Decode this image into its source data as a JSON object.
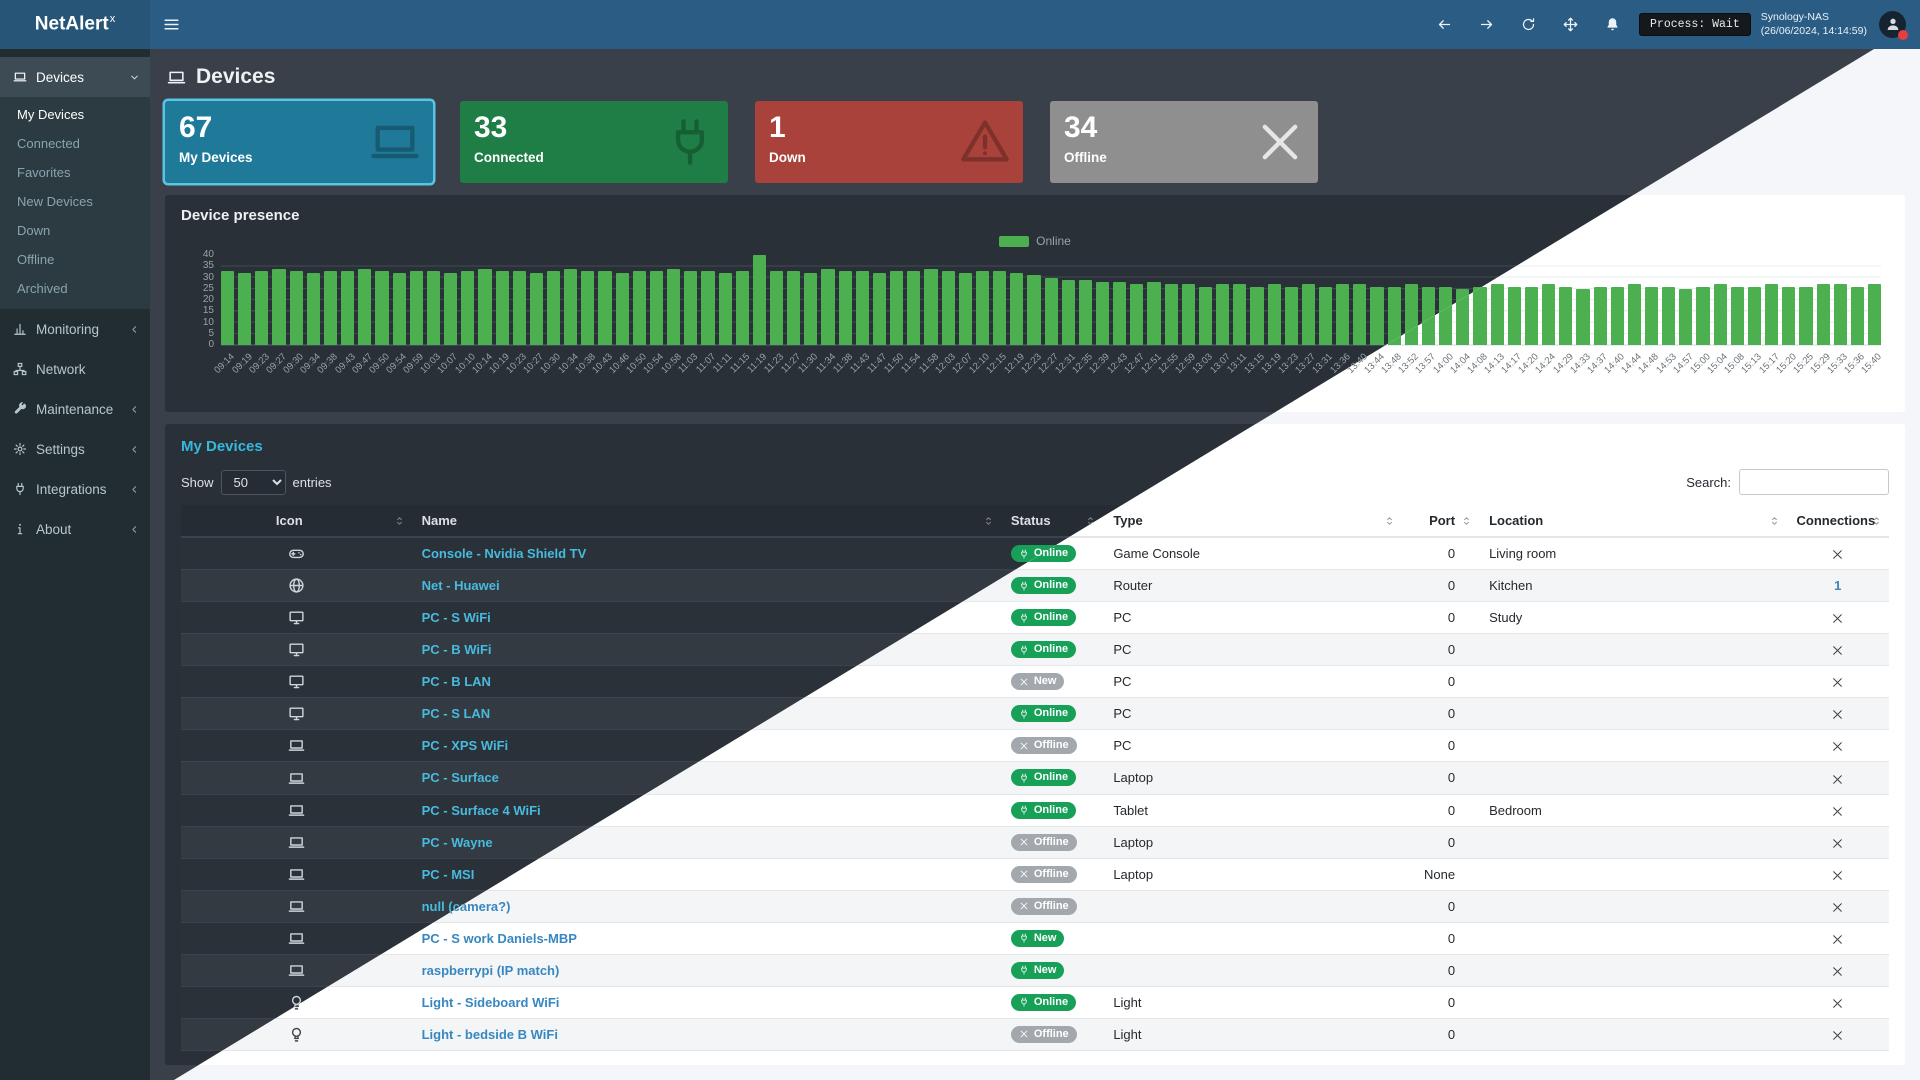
{
  "navbar": {
    "brand": "NetAlert",
    "brand_sup": "x",
    "process_label": "Process: Wait",
    "host": "Synology-NAS",
    "timestamp": "(26/06/2024, 14:14:59)"
  },
  "sidebar": {
    "sections": [
      {
        "label": "Devices",
        "icon": "laptop-icon",
        "chevron": "down",
        "active": true,
        "children": [
          "My Devices",
          "Connected",
          "Favorites",
          "New Devices",
          "Down",
          "Offline",
          "Archived"
        ]
      },
      {
        "label": "Monitoring",
        "icon": "chart-icon",
        "chevron": "left"
      },
      {
        "label": "Network",
        "icon": "network-icon",
        "chevron": ""
      },
      {
        "label": "Maintenance",
        "icon": "wrench-icon",
        "chevron": "left"
      },
      {
        "label": "Settings",
        "icon": "gear-icon",
        "chevron": "left"
      },
      {
        "label": "Integrations",
        "icon": "plug-icon",
        "chevron": "left"
      },
      {
        "label": "About",
        "icon": "info-icon",
        "chevron": "left"
      }
    ]
  },
  "page": {
    "title": "Devices"
  },
  "cards": [
    {
      "value": "67",
      "label": "My Devices",
      "icon": "laptop-icon",
      "color": "#1f7a99",
      "selected": true
    },
    {
      "value": "33",
      "label": "Connected",
      "icon": "plug-icon",
      "color": "#1e7e45"
    },
    {
      "value": "1",
      "label": "Down",
      "icon": "warning-icon",
      "color": "#a8423a"
    },
    {
      "value": "34",
      "label": "Offline",
      "icon": "x-icon",
      "color": "#8f8f8f",
      "icon_bright": true
    }
  ],
  "chart_data": {
    "type": "bar",
    "title": "Device presence",
    "legend_label": "Online",
    "legend_position": "top-center",
    "bar_color": "#4caf50",
    "grid": true,
    "ylim": [
      0,
      40
    ],
    "yticks": [
      0,
      5,
      10,
      15,
      20,
      25,
      30,
      35,
      40
    ],
    "x": [
      "09:14",
      "09:19",
      "09:23",
      "09:27",
      "09:30",
      "09:34",
      "09:38",
      "09:43",
      "09:47",
      "09:50",
      "09:54",
      "09:59",
      "10:03",
      "10:07",
      "10:10",
      "10:14",
      "10:19",
      "10:23",
      "10:27",
      "10:30",
      "10:34",
      "10:38",
      "10:43",
      "10:46",
      "10:50",
      "10:54",
      "10:58",
      "11:03",
      "11:07",
      "11:11",
      "11:15",
      "11:19",
      "11:23",
      "11:27",
      "11:30",
      "11:34",
      "11:38",
      "11:43",
      "11:47",
      "11:50",
      "11:54",
      "11:58",
      "12:03",
      "12:07",
      "12:10",
      "12:15",
      "12:19",
      "12:23",
      "12:27",
      "12:31",
      "12:35",
      "12:39",
      "12:43",
      "12:47",
      "12:51",
      "12:55",
      "12:59",
      "13:03",
      "13:07",
      "13:11",
      "13:15",
      "13:19",
      "13:23",
      "13:27",
      "13:31",
      "13:36",
      "13:40",
      "13:44",
      "13:48",
      "13:52",
      "13:57",
      "14:00",
      "14:04",
      "14:08",
      "14:13",
      "14:17",
      "14:20",
      "14:24",
      "14:29",
      "14:33",
      "14:37",
      "14:40",
      "14:44",
      "14:48",
      "14:53",
      "14:57",
      "15:00",
      "15:04",
      "15:08",
      "15:13",
      "15:17",
      "15:20",
      "15:25",
      "15:29",
      "15:33",
      "15:36",
      "15:40"
    ],
    "values": [
      33,
      32,
      33,
      34,
      33,
      32,
      33,
      33,
      34,
      33,
      32,
      33,
      33,
      32,
      33,
      34,
      33,
      33,
      32,
      33,
      34,
      33,
      33,
      32,
      33,
      33,
      34,
      33,
      33,
      32,
      33,
      40,
      33,
      33,
      32,
      34,
      33,
      33,
      32,
      33,
      33,
      34,
      33,
      32,
      33,
      33,
      32,
      31,
      30,
      29,
      29,
      28,
      28,
      27,
      28,
      27,
      27,
      26,
      27,
      27,
      26,
      27,
      26,
      27,
      26,
      27,
      27,
      26,
      26,
      27,
      26,
      26,
      25,
      26,
      27,
      26,
      26,
      27,
      26,
      25,
      26,
      26,
      27,
      26,
      26,
      25,
      26,
      27,
      26,
      26,
      27,
      26,
      26,
      27,
      27,
      26,
      27
    ]
  },
  "table": {
    "heading": "My Devices",
    "show_label": "Show",
    "page_size": "50",
    "entries_label": "entries",
    "search_label": "Search:",
    "search_value": "",
    "columns": [
      "Icon",
      "Name",
      "Status",
      "Type",
      "Port",
      "Location",
      "Connections"
    ],
    "rows": [
      {
        "icon": "gamepad-icon",
        "name": "Console - Nvidia Shield TV",
        "status": {
          "label": "Online",
          "kind": "online"
        },
        "type": "Game Console",
        "port": "0",
        "location": "Living room",
        "connections": "x"
      },
      {
        "icon": "globe-icon",
        "name": "Net - Huawei",
        "status": {
          "label": "Online",
          "kind": "online"
        },
        "type": "Router",
        "port": "0",
        "location": "Kitchen",
        "connections": "1"
      },
      {
        "icon": "desktop-icon",
        "name": "PC - S WiFi",
        "status": {
          "label": "Online",
          "kind": "online"
        },
        "type": "PC",
        "port": "0",
        "location": "Study",
        "connections": "x"
      },
      {
        "icon": "desktop-icon",
        "name": "PC - B WiFi",
        "status": {
          "label": "Online",
          "kind": "online"
        },
        "type": "PC",
        "port": "0",
        "location": "",
        "connections": "x"
      },
      {
        "icon": "desktop-icon",
        "name": "PC - B LAN",
        "status": {
          "label": "New",
          "kind": "new_muted"
        },
        "type": "PC",
        "port": "0",
        "location": "",
        "connections": "x"
      },
      {
        "icon": "desktop-icon",
        "name": "PC - S LAN",
        "status": {
          "label": "Online",
          "kind": "online"
        },
        "type": "PC",
        "port": "0",
        "location": "",
        "connections": "x"
      },
      {
        "icon": "laptop-icon",
        "name": "PC - XPS WiFi",
        "status": {
          "label": "Offline",
          "kind": "offline"
        },
        "type": "PC",
        "port": "0",
        "location": "",
        "connections": "x"
      },
      {
        "icon": "laptop-icon",
        "name": "PC - Surface",
        "status": {
          "label": "Online",
          "kind": "online"
        },
        "type": "Laptop",
        "port": "0",
        "location": "",
        "connections": "x"
      },
      {
        "icon": "laptop-icon",
        "name": "PC - Surface 4 WiFi",
        "status": {
          "label": "Online",
          "kind": "online"
        },
        "type": "Tablet",
        "port": "0",
        "location": "Bedroom",
        "connections": "x"
      },
      {
        "icon": "laptop-icon",
        "name": "PC - Wayne",
        "status": {
          "label": "Offline",
          "kind": "offline"
        },
        "type": "Laptop",
        "port": "0",
        "location": "",
        "connections": "x"
      },
      {
        "icon": "laptop-icon",
        "name": "PC - MSI",
        "status": {
          "label": "Offline",
          "kind": "offline"
        },
        "type": "Laptop",
        "port": "None",
        "location": "",
        "connections": "x"
      },
      {
        "icon": "laptop-icon",
        "name": "null (camera?)",
        "status": {
          "label": "Offline",
          "kind": "offline"
        },
        "type": "",
        "port": "0",
        "location": "",
        "connections": "x"
      },
      {
        "icon": "laptop-icon",
        "name": "PC - S work Daniels-MBP",
        "status": {
          "label": "New",
          "kind": "new"
        },
        "type": "",
        "port": "0",
        "location": "",
        "connections": "x"
      },
      {
        "icon": "laptop-icon",
        "name": "raspberrypi (IP match)",
        "status": {
          "label": "New",
          "kind": "new"
        },
        "type": "",
        "port": "0",
        "location": "",
        "connections": "x"
      },
      {
        "icon": "lightbulb-icon",
        "name": "Light - Sideboard WiFi",
        "status": {
          "label": "Online",
          "kind": "online"
        },
        "type": "Light",
        "port": "0",
        "location": "",
        "connections": "x"
      },
      {
        "icon": "lightbulb-icon",
        "name": "Light - bedside B WiFi",
        "status": {
          "label": "Offline",
          "kind": "offline"
        },
        "type": "Light",
        "port": "0",
        "location": "",
        "connections": "x"
      }
    ]
  },
  "colors": {
    "navbar_dark": "#2b5d84",
    "navbar_light": "#3c8dbc",
    "sidebar": "#222d32",
    "bar_green": "#4caf50",
    "badge_online": "#17a158",
    "badge_muted": "#a2a8ae",
    "card_my_devices": "#1f7a99",
    "card_connected": "#1e7e45",
    "card_down": "#a8423a",
    "card_offline": "#8f8f8f"
  }
}
